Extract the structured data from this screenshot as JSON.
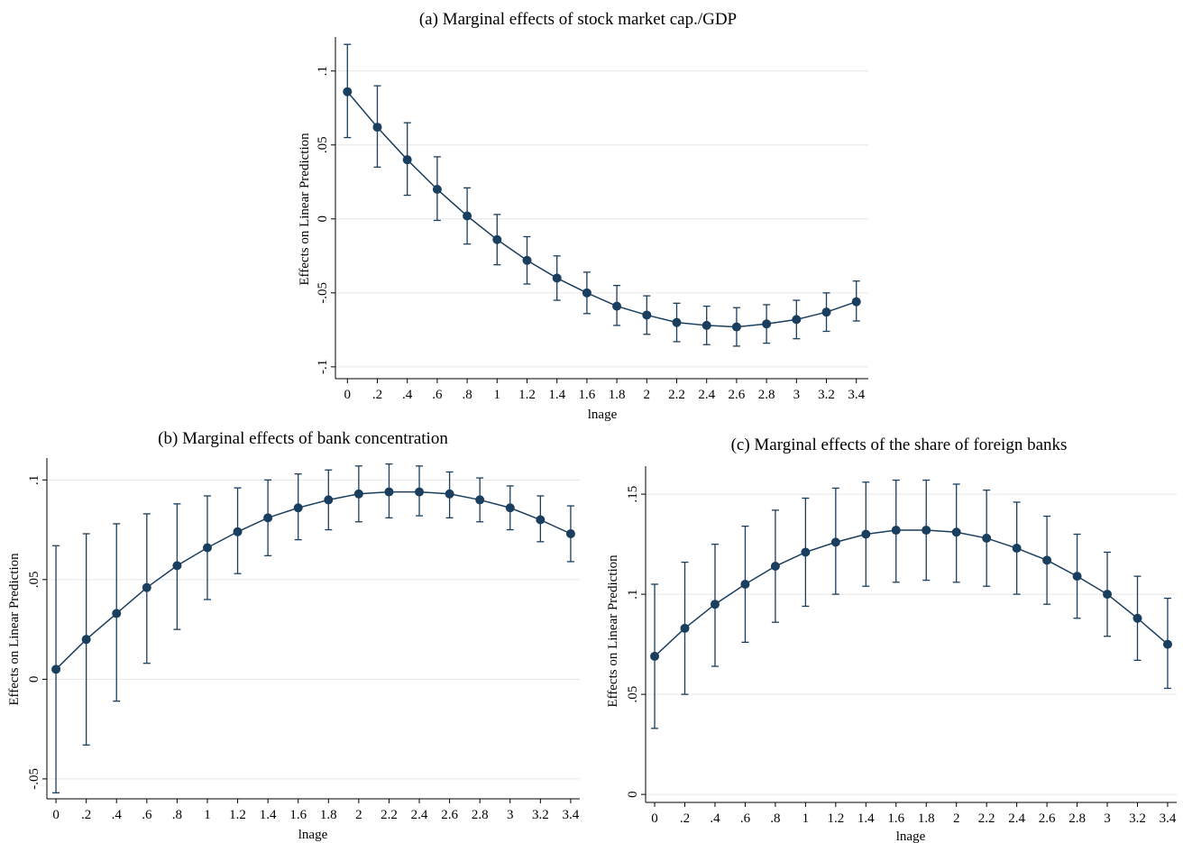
{
  "chart_data": [
    {
      "type": "line",
      "title": "(a) Marginal effects of stock market cap./GDP",
      "xlabel": "lnage",
      "ylabel": "Effects on Linear Prediction",
      "x": [
        0,
        0.2,
        0.4,
        0.6,
        0.8,
        1,
        1.2,
        1.4,
        1.6,
        1.8,
        2,
        2.2,
        2.4,
        2.6,
        2.8,
        3,
        3.2,
        3.4
      ],
      "x_tick_labels": [
        "0",
        ".2",
        ".4",
        ".6",
        ".8",
        "1",
        "1.2",
        "1.4",
        "1.6",
        "1.8",
        "2",
        "2.2",
        "2.4",
        "2.6",
        "2.8",
        "3",
        "3.2",
        "3.4"
      ],
      "y_ticks": [
        -0.1,
        -0.05,
        0,
        0.05,
        0.1
      ],
      "y_tick_labels": [
        "-.1",
        "-.05",
        "0",
        ".05",
        ".1"
      ],
      "xlim": [
        -0.08,
        3.48
      ],
      "ylim": [
        -0.108,
        0.123
      ],
      "grid": true,
      "series": [
        {
          "values": [
            0.086,
            0.062,
            0.04,
            0.02,
            0.002,
            -0.014,
            -0.028,
            -0.04,
            -0.05,
            -0.059,
            -0.065,
            -0.07,
            -0.072,
            -0.073,
            -0.071,
            -0.068,
            -0.063,
            -0.056
          ],
          "ci_lower": [
            0.055,
            0.035,
            0.016,
            -0.001,
            -0.017,
            -0.031,
            -0.044,
            -0.055,
            -0.064,
            -0.072,
            -0.078,
            -0.083,
            -0.085,
            -0.086,
            -0.084,
            -0.081,
            -0.076,
            -0.069
          ],
          "ci_upper": [
            0.118,
            0.09,
            0.065,
            0.042,
            0.021,
            0.003,
            -0.012,
            -0.025,
            -0.036,
            -0.045,
            -0.052,
            -0.057,
            -0.059,
            -0.06,
            -0.058,
            -0.055,
            -0.05,
            -0.042
          ]
        }
      ]
    },
    {
      "type": "line",
      "title": "(b) Marginal effects of bank concentration",
      "xlabel": "lnage",
      "ylabel": "Effects on Linear Prediction",
      "x": [
        0,
        0.2,
        0.4,
        0.6,
        0.8,
        1,
        1.2,
        1.4,
        1.6,
        1.8,
        2,
        2.2,
        2.4,
        2.6,
        2.8,
        3,
        3.2,
        3.4
      ],
      "x_tick_labels": [
        "0",
        ".2",
        ".4",
        ".6",
        ".8",
        "1",
        "1.2",
        "1.4",
        "1.6",
        "1.8",
        "2",
        "2.2",
        "2.4",
        "2.6",
        "2.8",
        "3",
        "3.2",
        "3.4"
      ],
      "y_ticks": [
        -0.05,
        0,
        0.05,
        0.1
      ],
      "y_tick_labels": [
        "-.05",
        "0",
        ".05",
        ".1"
      ],
      "xlim": [
        -0.06,
        3.46
      ],
      "ylim": [
        -0.06,
        0.111
      ],
      "grid": true,
      "series": [
        {
          "values": [
            0.005,
            0.02,
            0.033,
            0.046,
            0.057,
            0.066,
            0.074,
            0.081,
            0.086,
            0.09,
            0.093,
            0.094,
            0.094,
            0.093,
            0.09,
            0.086,
            0.08,
            0.073
          ],
          "ci_lower": [
            -0.057,
            -0.033,
            -0.011,
            0.008,
            0.025,
            0.04,
            0.053,
            0.062,
            0.07,
            0.075,
            0.079,
            0.081,
            0.082,
            0.081,
            0.079,
            0.075,
            0.069,
            0.059
          ],
          "ci_upper": [
            0.067,
            0.073,
            0.078,
            0.083,
            0.088,
            0.092,
            0.096,
            0.1,
            0.103,
            0.105,
            0.107,
            0.108,
            0.107,
            0.104,
            0.101,
            0.097,
            0.092,
            0.087
          ]
        }
      ]
    },
    {
      "type": "line",
      "title": "(c) Marginal effects of the share of foreign banks",
      "xlabel": "lnage",
      "ylabel": "Effects on Linear Prediction",
      "x": [
        0,
        0.2,
        0.4,
        0.6,
        0.8,
        1,
        1.2,
        1.4,
        1.6,
        1.8,
        2,
        2.2,
        2.4,
        2.6,
        2.8,
        3,
        3.2,
        3.4
      ],
      "x_tick_labels": [
        "0",
        ".2",
        ".4",
        ".6",
        ".8",
        "1",
        "1.2",
        "1.4",
        "1.6",
        "1.8",
        "2",
        "2.2",
        "2.4",
        "2.6",
        "2.8",
        "3",
        "3.2",
        "3.4"
      ],
      "y_ticks": [
        0,
        0.05,
        0.1,
        0.15
      ],
      "y_tick_labels": [
        "0",
        ".05",
        ".1",
        ".15"
      ],
      "xlim": [
        -0.06,
        3.46
      ],
      "ylim": [
        -0.004,
        0.164
      ],
      "grid": true,
      "series": [
        {
          "values": [
            0.069,
            0.083,
            0.095,
            0.105,
            0.114,
            0.121,
            0.126,
            0.13,
            0.132,
            0.132,
            0.131,
            0.128,
            0.123,
            0.117,
            0.109,
            0.1,
            0.088,
            0.075
          ],
          "ci_lower": [
            0.033,
            0.05,
            0.064,
            0.076,
            0.086,
            0.094,
            0.1,
            0.104,
            0.106,
            0.107,
            0.106,
            0.104,
            0.1,
            0.095,
            0.088,
            0.079,
            0.067,
            0.053
          ],
          "ci_upper": [
            0.105,
            0.116,
            0.125,
            0.134,
            0.142,
            0.148,
            0.153,
            0.156,
            0.157,
            0.157,
            0.155,
            0.152,
            0.146,
            0.139,
            0.13,
            0.121,
            0.109,
            0.098
          ]
        }
      ]
    }
  ],
  "colors": {
    "series": "#1a3e5e",
    "grid": "#e6e6e6",
    "axis": "#000000"
  }
}
